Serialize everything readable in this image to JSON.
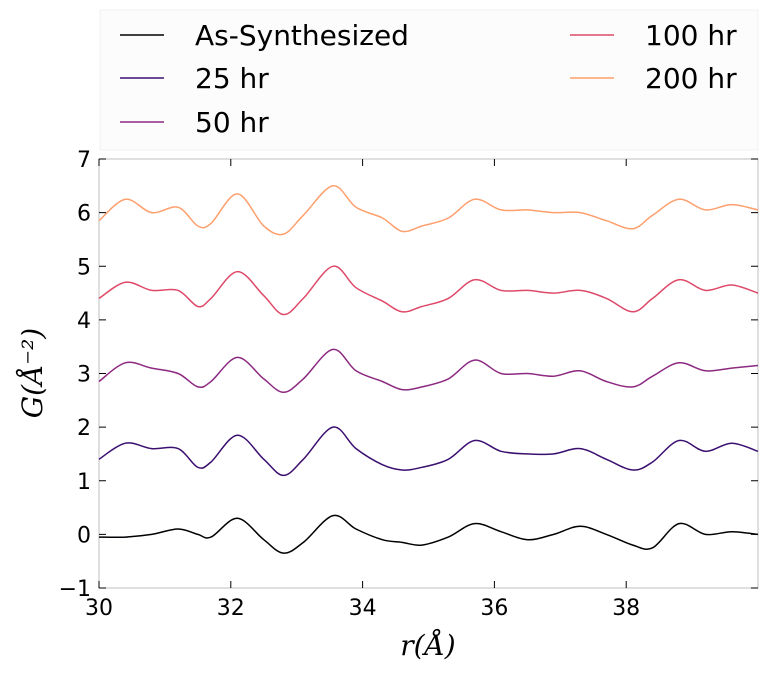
{
  "chart_data": {
    "type": "line",
    "xlabel": "r(Å)",
    "ylabel": "G(Å⁻²)",
    "xlim": [
      30,
      40
    ],
    "ylim": [
      -1,
      7
    ],
    "xticks": [
      30,
      32,
      34,
      36,
      38
    ],
    "yticks": [
      -1,
      0,
      1,
      2,
      3,
      4,
      5,
      6,
      7
    ],
    "grid": false,
    "legend_position": "top",
    "x": [
      30.0,
      30.4,
      30.8,
      31.2,
      31.5,
      31.7,
      32.1,
      32.5,
      32.8,
      33.1,
      33.55,
      33.9,
      34.3,
      34.6,
      34.9,
      35.3,
      35.7,
      36.1,
      36.5,
      36.9,
      37.3,
      37.7,
      38.1,
      38.4,
      38.8,
      39.2,
      39.6,
      40.0
    ],
    "series": [
      {
        "name": "As-Synthesized",
        "color": "#000004",
        "values": [
          -0.05,
          -0.05,
          0.0,
          0.1,
          0.0,
          -0.05,
          0.3,
          -0.1,
          -0.35,
          -0.15,
          0.35,
          0.1,
          -0.1,
          -0.15,
          -0.2,
          -0.05,
          0.2,
          0.05,
          -0.1,
          0.0,
          0.15,
          0.0,
          -0.2,
          -0.25,
          0.2,
          0.0,
          0.05,
          0.0
        ]
      },
      {
        "name": "25 hr",
        "color": "#3b0f70",
        "values": [
          1.4,
          1.7,
          1.6,
          1.6,
          1.25,
          1.35,
          1.85,
          1.4,
          1.1,
          1.4,
          2.0,
          1.6,
          1.3,
          1.2,
          1.25,
          1.4,
          1.75,
          1.55,
          1.5,
          1.5,
          1.6,
          1.4,
          1.2,
          1.35,
          1.75,
          1.55,
          1.7,
          1.55
        ]
      },
      {
        "name": "50 hr",
        "color": "#8c2981",
        "values": [
          2.85,
          3.2,
          3.1,
          3.0,
          2.75,
          2.85,
          3.3,
          2.9,
          2.65,
          2.9,
          3.45,
          3.05,
          2.85,
          2.7,
          2.75,
          2.9,
          3.25,
          3.0,
          3.0,
          2.95,
          3.05,
          2.85,
          2.75,
          2.95,
          3.2,
          3.05,
          3.1,
          3.15
        ]
      },
      {
        "name": "100 hr",
        "color": "#de4968",
        "values": [
          4.4,
          4.7,
          4.55,
          4.55,
          4.25,
          4.4,
          4.9,
          4.45,
          4.1,
          4.4,
          5.0,
          4.6,
          4.35,
          4.15,
          4.25,
          4.4,
          4.75,
          4.55,
          4.55,
          4.5,
          4.55,
          4.4,
          4.15,
          4.4,
          4.75,
          4.55,
          4.65,
          4.5
        ]
      },
      {
        "name": "200 hr",
        "color": "#fe9f6d",
        "values": [
          5.85,
          6.25,
          6.0,
          6.1,
          5.75,
          5.8,
          6.35,
          5.75,
          5.6,
          5.95,
          6.5,
          6.1,
          5.9,
          5.65,
          5.75,
          5.9,
          6.25,
          6.05,
          6.05,
          6.0,
          6.0,
          5.85,
          5.7,
          5.95,
          6.25,
          6.05,
          6.15,
          6.05
        ]
      }
    ]
  }
}
